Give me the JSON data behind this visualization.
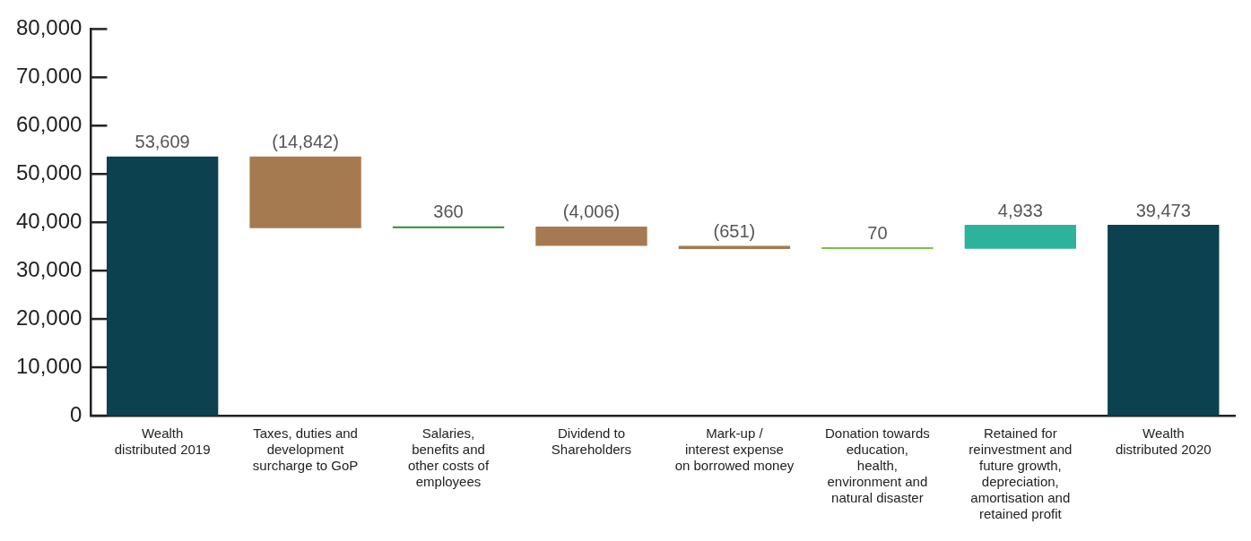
{
  "chart_data": {
    "type": "bar",
    "categories": [
      "Wealth distributed 2019",
      "Taxes, duties and development surcharge to GoP",
      "Salaries, benefits and other costs of employees",
      "Dividend to Shareholders",
      "Mark-up / interest expense on borrowed money",
      "Donation towards education, health, environment and natural disaster",
      "Retained for reinvestment and future growth, depreciation, amortisation and retained profit",
      "Wealth distributed 2020"
    ],
    "values": [
      53609,
      -14842,
      360,
      -4006,
      -651,
      70,
      4933,
      39473
    ],
    "base": [
      0,
      53609,
      38767,
      39127,
      35121,
      34470,
      34540,
      0
    ],
    "colors": [
      "#0c4150",
      "#a67a50",
      "#2e8b3a",
      "#a67a50",
      "#a67a50",
      "#7dc142",
      "#2db39c",
      "#0c4150"
    ],
    "value_labels": [
      "53,609",
      "(14,842)",
      "360",
      "(4,006)",
      "(651)",
      "70",
      "4,933",
      "39,473"
    ],
    "ylim": [
      0,
      80000
    ],
    "yticks": [
      0,
      {
        "value": 10000,
        "label": "10,000"
      },
      {
        "value": 20000,
        "label": "20,000"
      },
      {
        "value": 30000,
        "label": "30,000"
      },
      {
        "value": 40000,
        "label": "40,000"
      },
      {
        "value": 50000,
        "label": "50,000"
      },
      {
        "value": 60000,
        "label": "60,000"
      },
      {
        "value": 70000,
        "label": "70,000"
      },
      {
        "value": 80000,
        "label": "80,000"
      }
    ],
    "grid": false,
    "legend": false
  }
}
